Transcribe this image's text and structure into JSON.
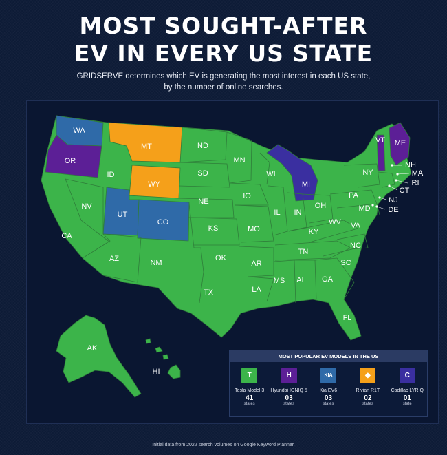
{
  "header": {
    "title_line1": "MOST SOUGHT-AFTER",
    "title_line2": "EV IN EVERY US STATE",
    "subtitle_line1": "GRIDSERVE determines which EV is generating the most interest in each US state,",
    "subtitle_line2": "by the number of online searches."
  },
  "colors": {
    "tesla": "#3cb44a",
    "hyundai": "#5c1f96",
    "kia": "#2f6aa8",
    "rivian": "#f5a01a",
    "cadillac": "#3a2fa0"
  },
  "map": {
    "state_labels": {
      "WA": "WA",
      "OR": "OR",
      "CA": "CA",
      "NV": "NV",
      "ID": "ID",
      "MT": "MT",
      "WY": "WY",
      "UT": "UT",
      "CO": "CO",
      "AZ": "AZ",
      "NM": "NM",
      "ND": "ND",
      "SD": "SD",
      "NE": "NE",
      "KS": "KS",
      "OK": "OK",
      "TX": "TX",
      "MN": "MN",
      "IO": "IO",
      "MO": "MO",
      "AR": "AR",
      "LA": "LA",
      "WI": "WI",
      "IL": "IL",
      "MI": "MI",
      "IN": "IN",
      "OH": "OH",
      "KY": "KY",
      "TN": "TN",
      "MS": "MS",
      "AL": "AL",
      "GA": "GA",
      "FL": "FL",
      "SC": "SC",
      "NC": "NC",
      "VA": "VA",
      "WV": "WV",
      "PA": "PA",
      "NY": "NY",
      "VT": "VT",
      "ME": "ME",
      "NH": "NH",
      "MA": "MA",
      "RI": "RI",
      "CT": "CT",
      "NJ": "NJ",
      "MD": "MD",
      "DE": "DE",
      "AK": "AK",
      "HI": "HI"
    }
  },
  "legend": {
    "heading": "MOST POPULAR EV MODELS IN THE US",
    "models": [
      {
        "name": "Tesla Model 3",
        "count": "41",
        "unit": "states",
        "logo": "T",
        "color": "#3cb44a"
      },
      {
        "name": "Hyundai IONIQ 5",
        "count": "03",
        "unit": "states",
        "logo": "H",
        "color": "#5c1f96"
      },
      {
        "name": "Kia EV6",
        "count": "03",
        "unit": "states",
        "logo": "KIA",
        "color": "#2f6aa8"
      },
      {
        "name": "Rivian R1T",
        "count": "02",
        "unit": "states",
        "logo": "◆",
        "color": "#f5a01a"
      },
      {
        "name": "Cadillac LYRIQ",
        "count": "01",
        "unit": "state",
        "logo": "C",
        "color": "#3a2fa0"
      }
    ]
  },
  "footer": "Initial data from 2022 search volumes on Google Keyword Planner."
}
